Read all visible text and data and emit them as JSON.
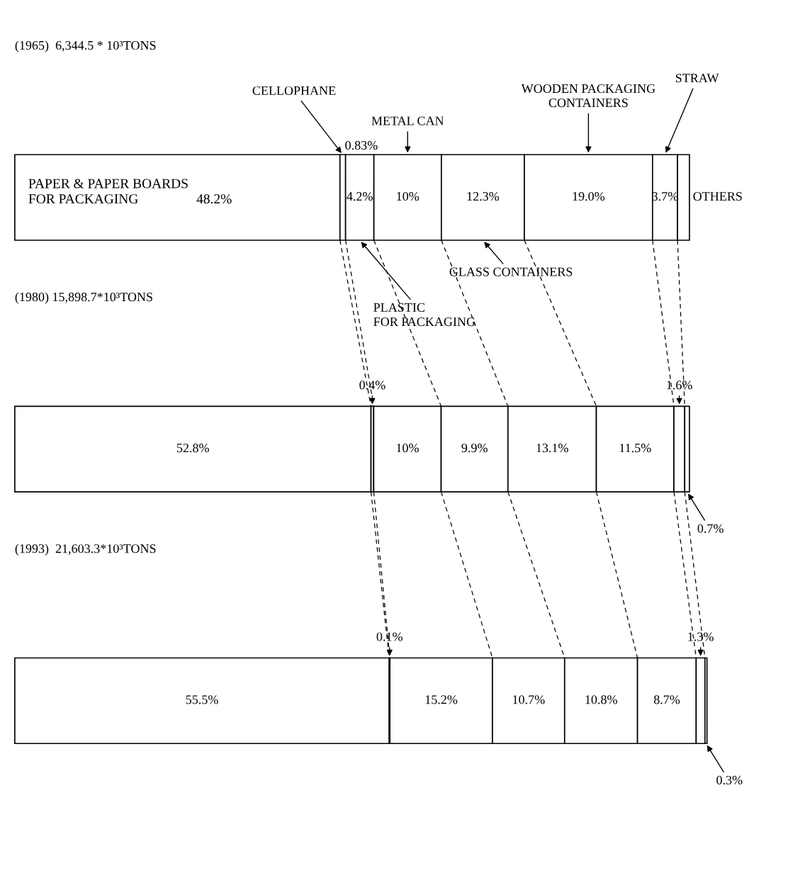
{
  "chart_data": {
    "type": "bar",
    "orientation": "horizontal",
    "stacked": true,
    "categories": [
      "(1965)  6,344.5 * 10³TONS",
      "(1980) 15,898.7*10³TONS",
      "(1993)  21,603.3*10³TONS"
    ],
    "series": [
      {
        "name": "PAPER & PAPER BOARDS\nFOR PACKAGING",
        "color": "#ffffff",
        "values": [
          48.2,
          52.8,
          55.5
        ],
        "value_labels": [
          "48.2%",
          "52.8%",
          "55.5%"
        ]
      },
      {
        "name": "CELLOPHANE",
        "color": "#ffffff",
        "values": [
          0.83,
          0.4,
          0.1
        ],
        "value_labels": [
          "0.83%",
          "0.4%",
          "0.1%"
        ]
      },
      {
        "name": "PLASTIC\nFOR PACKAGING",
        "color": "#ffffff",
        "values": [
          4.2,
          10,
          15.2
        ],
        "value_labels": [
          "4.2%",
          "10%",
          "15.2%"
        ]
      },
      {
        "name": "METAL CAN",
        "color": "#ffffff",
        "values": [
          10,
          9.9,
          10.7
        ],
        "value_labels": [
          "10%",
          "9.9%",
          "10.7%"
        ]
      },
      {
        "name": "GLASS CONTAINERS",
        "color": "#ffffff",
        "values": [
          12.3,
          13.1,
          10.8
        ],
        "value_labels": [
          "12.3%",
          "13.1%",
          "10.8%"
        ]
      },
      {
        "name": "WOODEN PACKAGING\nCONTAINERS",
        "color": "#ffffff",
        "values": [
          19.0,
          11.5,
          8.7
        ],
        "value_labels": [
          "19.0%",
          "11.5%",
          "8.7%"
        ]
      },
      {
        "name": "STRAW",
        "color": "#ffffff",
        "values": [
          3.7,
          1.6,
          1.3
        ],
        "value_labels": [
          "3.7%",
          "1.6%",
          "1.3%"
        ]
      },
      {
        "name": "OTHERS",
        "color": "#ffffff",
        "values": [
          1.77,
          0.7,
          0.3
        ],
        "value_labels": [
          null,
          "0.7%",
          "0.3%"
        ]
      }
    ]
  }
}
